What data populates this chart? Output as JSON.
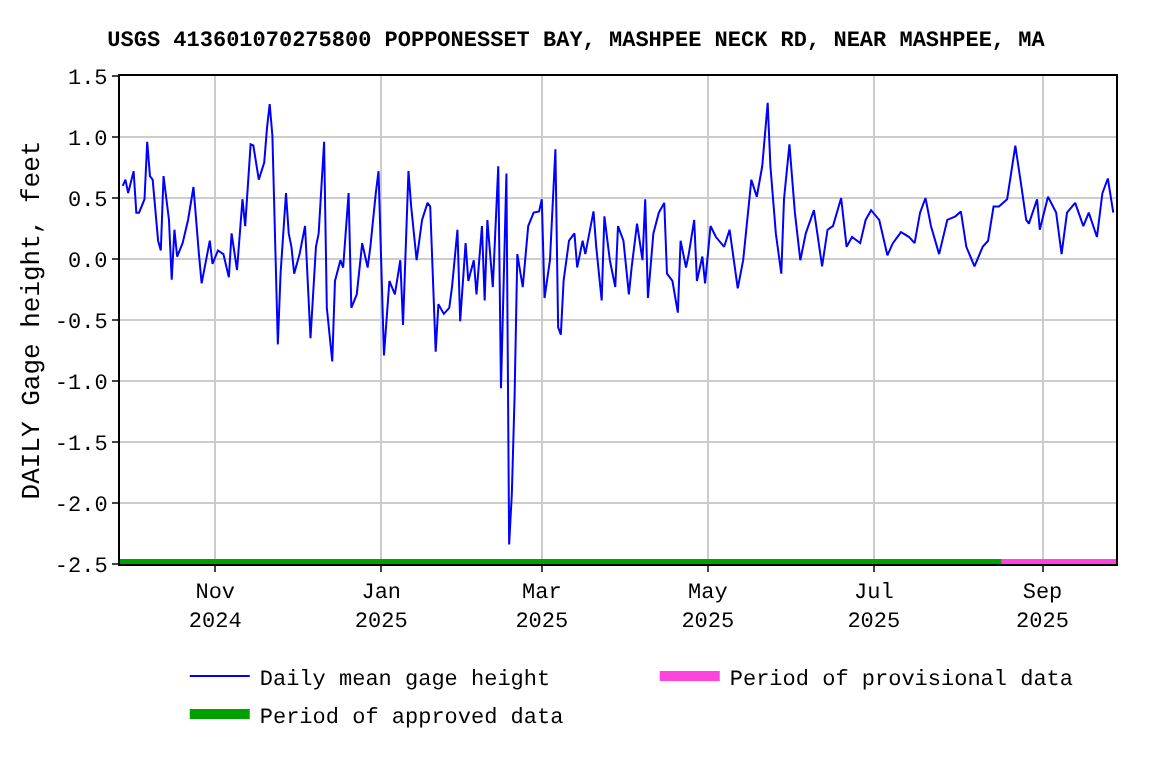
{
  "chart_data": {
    "type": "line",
    "title": "USGS 413601070275800 POPPONESSET BAY, MASHPEE NECK RD, NEAR MASHPEE, MA",
    "ylabel": "DAILY Gage height, feet",
    "x": [
      "2024-09-28",
      "2024-09-29",
      "2024-09-30",
      "2024-10-02",
      "2024-10-03",
      "2024-10-04",
      "2024-10-06",
      "2024-10-07",
      "2024-10-08",
      "2024-10-09",
      "2024-10-11",
      "2024-10-12",
      "2024-10-13",
      "2024-10-15",
      "2024-10-16",
      "2024-10-17",
      "2024-10-18",
      "2024-10-20",
      "2024-10-22",
      "2024-10-24",
      "2024-10-26",
      "2024-10-27",
      "2024-10-30",
      "2024-10-31",
      "2024-11-02",
      "2024-11-04",
      "2024-11-06",
      "2024-11-07",
      "2024-11-09",
      "2024-11-11",
      "2024-11-12",
      "2024-11-14",
      "2024-11-15",
      "2024-11-17",
      "2024-11-19",
      "2024-11-20",
      "2024-11-21",
      "2024-11-22",
      "2024-11-24",
      "2024-11-25",
      "2024-11-27",
      "2024-11-28",
      "2024-11-29",
      "2024-11-30",
      "2024-12-02",
      "2024-12-04",
      "2024-12-06",
      "2024-12-08",
      "2024-12-09",
      "2024-12-11",
      "2024-12-12",
      "2024-12-14",
      "2024-12-15",
      "2024-12-17",
      "2024-12-18",
      "2024-12-20",
      "2024-12-21",
      "2024-12-23",
      "2024-12-25",
      "2024-12-27",
      "2024-12-28",
      "2024-12-30",
      "2024-12-31",
      "2025-01-02",
      "2025-01-04",
      "2025-01-06",
      "2025-01-08",
      "2025-01-09",
      "2025-01-11",
      "2025-01-12",
      "2025-01-14",
      "2025-01-16",
      "2025-01-18",
      "2025-01-19",
      "2025-01-21",
      "2025-01-22",
      "2025-01-24",
      "2025-01-26",
      "2025-01-27",
      "2025-01-29",
      "2025-01-30",
      "2025-02-01",
      "2025-02-02",
      "2025-02-04",
      "2025-02-05",
      "2025-02-07",
      "2025-02-08",
      "2025-02-09",
      "2025-02-11",
      "2025-02-13",
      "2025-02-14",
      "2025-02-16",
      "2025-02-17",
      "2025-02-18",
      "2025-02-19",
      "2025-02-20",
      "2025-02-22",
      "2025-02-24",
      "2025-02-26",
      "2025-02-28",
      "2025-03-01",
      "2025-03-02",
      "2025-03-04",
      "2025-03-06",
      "2025-03-07",
      "2025-03-08",
      "2025-03-09",
      "2025-03-11",
      "2025-03-13",
      "2025-03-14",
      "2025-03-16",
      "2025-03-17",
      "2025-03-20",
      "2025-03-21",
      "2025-03-23",
      "2025-03-24",
      "2025-03-26",
      "2025-03-28",
      "2025-03-29",
      "2025-03-31",
      "2025-04-02",
      "2025-04-03",
      "2025-04-05",
      "2025-04-07",
      "2025-04-08",
      "2025-04-09",
      "2025-04-11",
      "2025-04-13",
      "2025-04-15",
      "2025-04-16",
      "2025-04-18",
      "2025-04-20",
      "2025-04-21",
      "2025-04-23",
      "2025-04-24",
      "2025-04-26",
      "2025-04-27",
      "2025-04-29",
      "2025-04-30",
      "2025-05-02",
      "2025-05-04",
      "2025-05-07",
      "2025-05-09",
      "2025-05-12",
      "2025-05-14",
      "2025-05-16",
      "2025-05-17",
      "2025-05-19",
      "2025-05-21",
      "2025-05-23",
      "2025-05-24",
      "2025-05-26",
      "2025-05-28",
      "2025-05-29",
      "2025-05-31",
      "2025-06-02",
      "2025-06-04",
      "2025-06-06",
      "2025-06-09",
      "2025-06-12",
      "2025-06-14",
      "2025-06-16",
      "2025-06-19",
      "2025-06-21",
      "2025-06-23",
      "2025-06-26",
      "2025-06-28",
      "2025-06-30",
      "2025-07-03",
      "2025-07-06",
      "2025-07-08",
      "2025-07-11",
      "2025-07-14",
      "2025-07-16",
      "2025-07-18",
      "2025-07-20",
      "2025-07-22",
      "2025-07-25",
      "2025-07-28",
      "2025-07-31",
      "2025-08-02",
      "2025-08-04",
      "2025-08-07",
      "2025-08-10",
      "2025-08-12",
      "2025-08-14",
      "2025-08-16",
      "2025-08-19",
      "2025-08-22",
      "2025-08-24",
      "2025-08-26",
      "2025-08-27",
      "2025-08-30",
      "2025-08-31",
      "2025-09-03",
      "2025-09-06",
      "2025-09-08",
      "2025-09-10",
      "2025-09-13",
      "2025-09-16",
      "2025-09-18",
      "2025-09-21",
      "2025-09-23",
      "2025-09-25",
      "2025-09-27"
    ],
    "series": [
      {
        "name": "Daily mean gage height",
        "color": "#0000ff",
        "values": [
          0.6,
          0.65,
          0.54,
          0.72,
          0.38,
          0.38,
          0.49,
          0.96,
          0.68,
          0.65,
          0.15,
          0.07,
          0.68,
          0.32,
          -0.17,
          0.24,
          0.02,
          0.13,
          0.32,
          0.59,
          0.04,
          -0.2,
          0.15,
          -0.04,
          0.07,
          0.04,
          -0.15,
          0.21,
          -0.09,
          0.49,
          0.27,
          0.94,
          0.93,
          0.65,
          0.79,
          1.07,
          1.27,
          1.01,
          -0.7,
          -0.12,
          0.54,
          0.21,
          0.1,
          -0.12,
          0.04,
          0.27,
          -0.65,
          0.1,
          0.21,
          0.96,
          -0.4,
          -0.84,
          -0.18,
          -0.01,
          -0.07,
          0.54,
          -0.4,
          -0.29,
          0.13,
          -0.07,
          0.1,
          0.54,
          0.72,
          -0.79,
          -0.18,
          -0.29,
          -0.01,
          -0.54,
          0.72,
          0.43,
          -0.01,
          0.32,
          0.46,
          0.43,
          -0.76,
          -0.37,
          -0.45,
          -0.4,
          -0.23,
          0.24,
          -0.51,
          0.13,
          -0.18,
          -0.01,
          -0.29,
          0.27,
          -0.34,
          0.32,
          -0.23,
          0.76,
          -1.06,
          0.7,
          -2.34,
          -1.92,
          -1.12,
          0.04,
          -0.23,
          0.27,
          0.38,
          0.39,
          0.49,
          -0.32,
          -0.01,
          0.9,
          -0.56,
          -0.62,
          -0.18,
          0.15,
          0.21,
          -0.07,
          0.15,
          0.04,
          0.39,
          0.1,
          -0.34,
          0.35,
          -0.01,
          -0.23,
          0.27,
          0.15,
          -0.29,
          -0.07,
          0.29,
          -0.01,
          0.49,
          -0.32,
          0.21,
          0.38,
          0.46,
          -0.12,
          -0.18,
          -0.44,
          0.15,
          -0.07,
          0.04,
          0.32,
          -0.18,
          0.02,
          -0.2,
          0.27,
          0.18,
          0.1,
          0.24,
          -0.24,
          -0.01,
          0.43,
          0.65,
          0.51,
          0.76,
          1.28,
          0.76,
          0.21,
          -0.12,
          0.49,
          0.94,
          0.38,
          -0.01,
          0.21,
          0.4,
          -0.06,
          0.24,
          0.27,
          0.5,
          0.1,
          0.18,
          0.13,
          0.32,
          0.4,
          0.32,
          0.03,
          0.13,
          0.22,
          0.18,
          0.13,
          0.38,
          0.5,
          0.27,
          0.04,
          0.32,
          0.35,
          0.39,
          0.1,
          -0.06,
          0.1,
          0.15,
          0.43,
          0.43,
          0.49,
          0.93,
          0.63,
          0.32,
          0.29,
          0.49,
          0.24,
          0.51,
          0.38,
          0.04,
          0.38,
          0.46,
          0.27,
          0.38,
          0.18,
          0.54,
          0.66,
          0.38
        ]
      },
      {
        "name": "Period of provisional data",
        "color": "#ff44dd",
        "x": [
          "2025-08-17",
          "2025-09-28"
        ],
        "values": [
          -2.5,
          -2.5
        ]
      },
      {
        "name": "Period of approved data",
        "color": "#00a000",
        "x": [
          "2024-09-27",
          "2025-08-17"
        ],
        "values": [
          -2.5,
          -2.5
        ]
      }
    ],
    "xlim": [
      "2024-09-27",
      "2025-09-28"
    ],
    "xticks": [
      {
        "value": "2024-11-01",
        "label": "Nov\n2024"
      },
      {
        "value": "2025-01-01",
        "label": "Jan\n2025"
      },
      {
        "value": "2025-03-01",
        "label": "Mar\n2025"
      },
      {
        "value": "2025-05-01",
        "label": "May\n2025"
      },
      {
        "value": "2025-07-01",
        "label": "Jul\n2025"
      },
      {
        "value": "2025-09-01",
        "label": "Sep\n2025"
      }
    ],
    "ylim": [
      -2.5,
      1.5
    ],
    "yticks": [
      {
        "value": -2.5,
        "label": "-2.5"
      },
      {
        "value": -2,
        "label": "-2.0"
      },
      {
        "value": -1.5,
        "label": "-1.5"
      },
      {
        "value": -1,
        "label": "-1.0"
      },
      {
        "value": -0.5,
        "label": "-0.5"
      },
      {
        "value": 0,
        "label": "0.0"
      },
      {
        "value": 0.5,
        "label": "0.5"
      },
      {
        "value": 1,
        "label": "1.0"
      },
      {
        "value": 1.5,
        "label": "1.5"
      }
    ],
    "grid": true,
    "legend": "bottom",
    "marker": "none",
    "line_style": "solid"
  }
}
